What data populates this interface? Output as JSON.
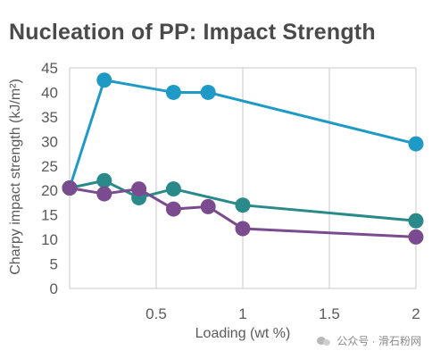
{
  "chart_data": {
    "type": "line",
    "title": "Nucleation of PP: Impact Strength",
    "xlabel": "Loading (wt %)",
    "ylabel": "Charpy impact strength (kJ/m²)",
    "xlim": [
      0,
      2
    ],
    "ylim": [
      0,
      45
    ],
    "x_ticks": [
      0.5,
      1,
      1.5,
      2
    ],
    "x_tick_labels": [
      "0.5",
      "1",
      "1.5",
      "2"
    ],
    "y_ticks": [
      0,
      5,
      10,
      15,
      20,
      25,
      30,
      35,
      40,
      45
    ],
    "y_tick_labels": [
      "0",
      "5",
      "10",
      "15",
      "20",
      "25",
      "30",
      "35",
      "40",
      "45"
    ],
    "grid": "vertical",
    "legend": "none",
    "series": [
      {
        "color": "#1f9ac6",
        "x": [
          0,
          0.2,
          0.6,
          0.8,
          2
        ],
        "y": [
          20.5,
          42.5,
          40,
          40,
          29.5
        ]
      },
      {
        "color": "#2a8a8a",
        "x": [
          0,
          0.2,
          0.4,
          0.6,
          1,
          2
        ],
        "y": [
          20.5,
          22,
          18.5,
          20.3,
          17,
          13.8
        ]
      },
      {
        "color": "#7b4b8f",
        "x": [
          0,
          0.2,
          0.4,
          0.6,
          0.8,
          1,
          2
        ],
        "y": [
          20.5,
          19.3,
          20.3,
          16.2,
          16.7,
          12.2,
          10.5
        ]
      }
    ]
  },
  "watermark": {
    "text": "公众号 · 滑石粉网"
  }
}
